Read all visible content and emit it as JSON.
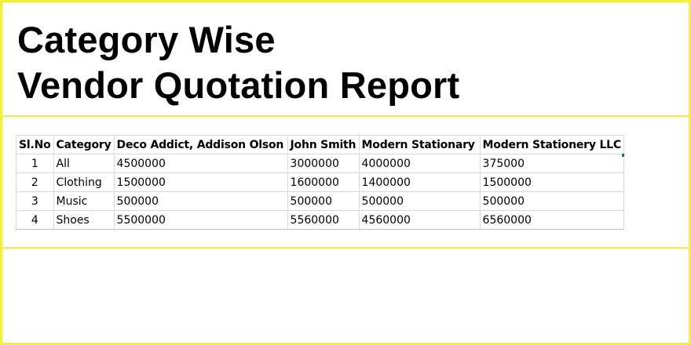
{
  "title": {
    "line1": "Category Wise",
    "line2": "Vendor Quotation Report"
  },
  "colors": {
    "frame": "#f3f03a",
    "gridline": "#d8d8d8",
    "cell_marker": "#1e7b3a"
  },
  "table": {
    "headers": [
      "Sl.No",
      "Category",
      "Deco Addict, Addison Olson",
      "John Smith",
      "Modern Stationary",
      "Modern Stationery LLC"
    ],
    "rows": [
      [
        "1",
        "All",
        "4500000",
        "3000000",
        "4000000",
        "375000"
      ],
      [
        "2",
        "Clothing",
        "1500000",
        "1600000",
        "1400000",
        "1500000"
      ],
      [
        "3",
        "Music",
        "500000",
        "500000",
        "500000",
        "500000"
      ],
      [
        "4",
        "Shoes",
        "5500000",
        "5560000",
        "4560000",
        "6560000"
      ]
    ]
  }
}
